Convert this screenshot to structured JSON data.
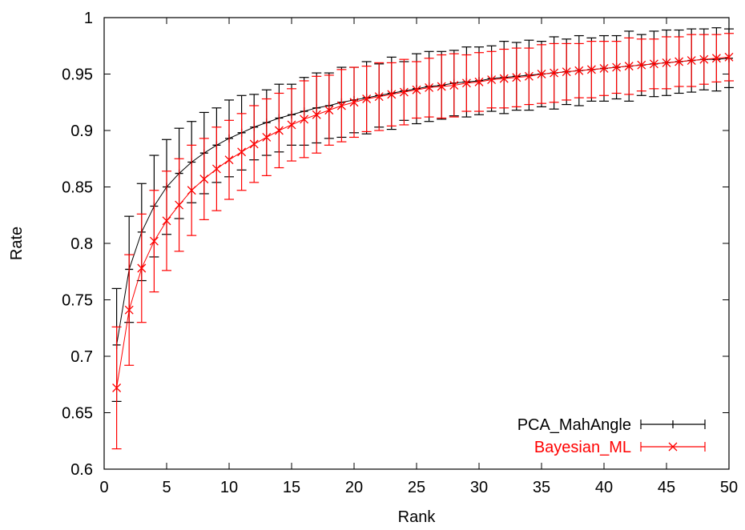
{
  "chart_data": {
    "type": "line",
    "xlabel": "Rank",
    "ylabel": "Rate",
    "xlim": [
      0,
      50
    ],
    "ylim": [
      0.6,
      1
    ],
    "xticks": [
      "0",
      "5",
      "10",
      "15",
      "20",
      "25",
      "30",
      "35",
      "40",
      "45",
      "50"
    ],
    "yticks": [
      "0.6",
      "0.65",
      "0.7",
      "0.75",
      "0.8",
      "0.85",
      "0.9",
      "0.95",
      "1"
    ],
    "grid": false,
    "legend_position": "bottom-right",
    "x": [
      1,
      2,
      3,
      4,
      5,
      6,
      7,
      8,
      9,
      10,
      11,
      12,
      13,
      14,
      15,
      16,
      17,
      18,
      19,
      20,
      21,
      22,
      23,
      24,
      25,
      26,
      27,
      28,
      29,
      30,
      31,
      32,
      33,
      34,
      35,
      36,
      37,
      38,
      39,
      40,
      41,
      42,
      43,
      44,
      45,
      46,
      47,
      48,
      49,
      50
    ],
    "series": [
      {
        "name": "PCA_MahAngle",
        "color": "#000000",
        "marker": "plus",
        "values": [
          0.71,
          0.777,
          0.81,
          0.833,
          0.85,
          0.862,
          0.872,
          0.88,
          0.887,
          0.893,
          0.898,
          0.903,
          0.907,
          0.911,
          0.914,
          0.917,
          0.92,
          0.922,
          0.925,
          0.927,
          0.929,
          0.931,
          0.933,
          0.935,
          0.937,
          0.939,
          0.94,
          0.942,
          0.943,
          0.944,
          0.946,
          0.947,
          0.948,
          0.949,
          0.95,
          0.951,
          0.952,
          0.953,
          0.954,
          0.955,
          0.956,
          0.957,
          0.958,
          0.959,
          0.96,
          0.961,
          0.962,
          0.963,
          0.963,
          0.964
        ],
        "error": [
          0.05,
          0.047,
          0.043,
          0.045,
          0.042,
          0.04,
          0.036,
          0.036,
          0.033,
          0.034,
          0.033,
          0.029,
          0.029,
          0.03,
          0.027,
          0.03,
          0.031,
          0.029,
          0.031,
          0.029,
          0.032,
          0.028,
          0.032,
          0.026,
          0.031,
          0.031,
          0.03,
          0.029,
          0.031,
          0.03,
          0.029,
          0.032,
          0.03,
          0.031,
          0.029,
          0.032,
          0.029,
          0.031,
          0.028,
          0.029,
          0.028,
          0.031,
          0.027,
          0.029,
          0.029,
          0.028,
          0.028,
          0.027,
          0.028,
          0.026
        ]
      },
      {
        "name": "Bayesian_ML",
        "color": "#ff0000",
        "marker": "x",
        "values": [
          0.672,
          0.741,
          0.778,
          0.802,
          0.82,
          0.834,
          0.847,
          0.857,
          0.866,
          0.874,
          0.881,
          0.888,
          0.894,
          0.9,
          0.905,
          0.91,
          0.914,
          0.918,
          0.922,
          0.925,
          0.928,
          0.93,
          0.932,
          0.934,
          0.936,
          0.938,
          0.939,
          0.94,
          0.942,
          0.943,
          0.945,
          0.946,
          0.947,
          0.948,
          0.95,
          0.951,
          0.952,
          0.953,
          0.954,
          0.955,
          0.956,
          0.957,
          0.958,
          0.959,
          0.96,
          0.961,
          0.962,
          0.963,
          0.964,
          0.965
        ],
        "error": [
          0.054,
          0.049,
          0.048,
          0.045,
          0.044,
          0.041,
          0.04,
          0.036,
          0.037,
          0.035,
          0.034,
          0.034,
          0.034,
          0.033,
          0.032,
          0.034,
          0.034,
          0.031,
          0.032,
          0.031,
          0.029,
          0.03,
          0.028,
          0.029,
          0.025,
          0.026,
          0.028,
          0.028,
          0.025,
          0.026,
          0.025,
          0.026,
          0.026,
          0.025,
          0.026,
          0.026,
          0.025,
          0.024,
          0.025,
          0.024,
          0.023,
          0.025,
          0.023,
          0.022,
          0.023,
          0.022,
          0.023,
          0.022,
          0.021,
          0.021
        ]
      }
    ]
  }
}
